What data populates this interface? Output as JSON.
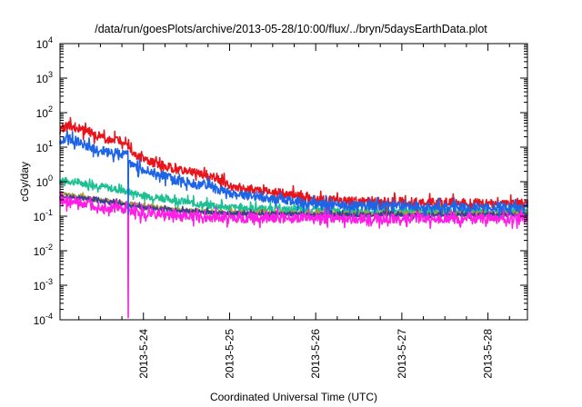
{
  "chart_data": {
    "type": "line",
    "title": "/data/run/goesPlots/archive/2013-05-28/10:00/flux/../bryn/5daysEarthData.plot",
    "xlabel": "Coordinated Universal Time (UTC)",
    "ylabel": "cGy/day",
    "yscale": "log",
    "ylim": [
      0.0001,
      10000
    ],
    "xlim": [
      "2013-05-23 00:45",
      "2013-05-28 11:00"
    ],
    "xticks": [
      "2013-5-24",
      "2013-5-25",
      "2013-5-26",
      "2013-5-27",
      "2013-5-28"
    ],
    "yticks": [
      {
        "base": "10",
        "exp": "-4",
        "value": 0.0001
      },
      {
        "base": "10",
        "exp": "-3",
        "value": 0.001
      },
      {
        "base": "10",
        "exp": "-2",
        "value": 0.01
      },
      {
        "base": "10",
        "exp": "-1",
        "value": 0.1
      },
      {
        "base": "10",
        "exp": "0",
        "value": 1
      },
      {
        "base": "10",
        "exp": "1",
        "value": 10
      },
      {
        "base": "10",
        "exp": "2",
        "value": 100
      },
      {
        "base": "10",
        "exp": "3",
        "value": 1000
      },
      {
        "base": "10",
        "exp": "4",
        "value": 10000
      }
    ],
    "grid": false,
    "legend": "none",
    "series": [
      {
        "color": "#e8141c",
        "noise": 0.13,
        "x": [
          "2013-05-23 00:45",
          "2013-05-23 03:00",
          "2013-05-23 05:00",
          "2013-05-23 08:00",
          "2013-05-23 12:00",
          "2013-05-23 16:00",
          "2013-05-23 19:00",
          "2013-05-23 19:40",
          "2013-05-23 20:30",
          "2013-05-24 00:00",
          "2013-05-24 04:00",
          "2013-05-24 08:00",
          "2013-05-24 14:00",
          "2013-05-24 20:00",
          "2013-05-25 00:00",
          "2013-05-25 06:00",
          "2013-05-25 12:00",
          "2013-05-25 18:00",
          "2013-05-26 00:00",
          "2013-05-26 12:00",
          "2013-05-27 00:00",
          "2013-05-27 12:00",
          "2013-05-28 00:00",
          "2013-05-28 11:00"
        ],
        "y": [
          32,
          45,
          38,
          30,
          20,
          15,
          15,
          14,
          8,
          4.2,
          3.2,
          2.4,
          1.8,
          1.3,
          0.75,
          0.6,
          0.5,
          0.4,
          0.3,
          0.27,
          0.26,
          0.25,
          0.24,
          0.23
        ]
      },
      {
        "color": "#1e64e6",
        "noise": 0.13,
        "x": [
          "2013-05-23 00:45",
          "2013-05-23 03:00",
          "2013-05-23 06:00",
          "2013-05-23 10:00",
          "2013-05-23 14:00",
          "2013-05-23 18:00",
          "2013-05-23 19:40",
          "2013-05-23 19:45",
          "2013-05-23 19:50",
          "2013-05-23 20:30",
          "2013-05-24 00:00",
          "2013-05-24 04:00",
          "2013-05-24 08:00",
          "2013-05-24 14:00",
          "2013-05-24 20:00",
          "2013-05-25 00:00",
          "2013-05-25 06:00",
          "2013-05-25 12:00",
          "2013-05-25 18:00",
          "2013-05-26 00:00",
          "2013-05-26 12:00",
          "2013-05-27 00:00",
          "2013-05-27 12:00",
          "2013-05-28 00:00",
          "2013-05-28 11:00"
        ],
        "y": [
          16,
          19,
          14,
          9,
          7,
          6.5,
          6,
          0.15,
          4.5,
          3.3,
          2.2,
          1.7,
          1.2,
          0.9,
          0.65,
          0.45,
          0.38,
          0.32,
          0.27,
          0.22,
          0.2,
          0.2,
          0.19,
          0.18,
          0.18
        ]
      },
      {
        "color": "#1fbf94",
        "noise": 0.1,
        "x": [
          "2013-05-23 00:45",
          "2013-05-23 06:00",
          "2013-05-23 12:00",
          "2013-05-23 18:00",
          "2013-05-24 00:00",
          "2013-05-24 08:00",
          "2013-05-24 16:00",
          "2013-05-25 00:00",
          "2013-05-25 12:00",
          "2013-05-26 00:00",
          "2013-05-26 12:00",
          "2013-05-27 00:00",
          "2013-05-27 12:00",
          "2013-05-28 00:00",
          "2013-05-28 11:00"
        ],
        "y": [
          1.1,
          0.95,
          0.75,
          0.55,
          0.4,
          0.3,
          0.22,
          0.18,
          0.16,
          0.15,
          0.14,
          0.14,
          0.14,
          0.14,
          0.14
        ]
      },
      {
        "color": "#a89a3c",
        "noise": 0.06,
        "x": [
          "2013-05-23 00:45",
          "2013-05-23 12:00",
          "2013-05-24 00:00",
          "2013-05-24 12:00",
          "2013-05-25 00:00",
          "2013-05-26 00:00",
          "2013-05-27 00:00",
          "2013-05-28 00:00",
          "2013-05-28 11:00"
        ],
        "y": [
          0.45,
          0.3,
          0.2,
          0.15,
          0.13,
          0.12,
          0.12,
          0.12,
          0.12
        ]
      },
      {
        "color": "#3a3f8f",
        "noise": 0.06,
        "x": [
          "2013-05-23 00:45",
          "2013-05-23 12:00",
          "2013-05-24 00:00",
          "2013-05-24 12:00",
          "2013-05-25 00:00",
          "2013-05-26 00:00",
          "2013-05-27 00:00",
          "2013-05-28 00:00",
          "2013-05-28 11:00"
        ],
        "y": [
          0.42,
          0.28,
          0.18,
          0.14,
          0.12,
          0.11,
          0.11,
          0.11,
          0.11
        ]
      },
      {
        "color": "#ff1ee6",
        "noise": 0.14,
        "x": [
          "2013-05-23 00:45",
          "2013-05-23 08:00",
          "2013-05-23 16:00",
          "2013-05-23 19:40",
          "2013-05-23 19:45",
          "2013-05-23 19:50",
          "2013-05-24 00:00",
          "2013-05-24 12:00",
          "2013-05-25 00:00",
          "2013-05-25 12:00",
          "2013-05-26 00:00",
          "2013-05-27 00:00",
          "2013-05-28 00:00",
          "2013-05-28 11:00"
        ],
        "y": [
          0.28,
          0.22,
          0.17,
          0.15,
          0.0001,
          0.15,
          0.12,
          0.1,
          0.09,
          0.09,
          0.085,
          0.085,
          0.085,
          0.085
        ]
      }
    ]
  }
}
